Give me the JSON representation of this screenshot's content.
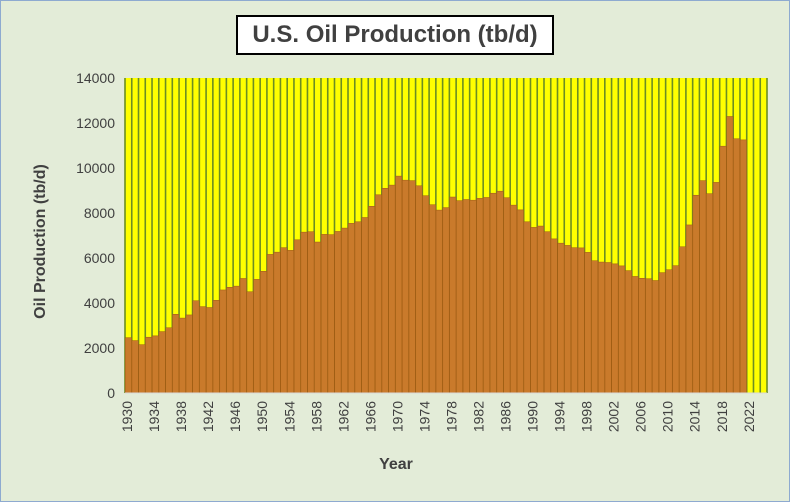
{
  "colors": {
    "background": "#e3ecd8",
    "plot_area": "#ffff00",
    "gridline": "#6b8e23",
    "bar_fill": "#c97a2b",
    "bar_edge": "#9e5a12",
    "text": "#404040"
  },
  "chart_data": {
    "type": "bar",
    "title": "U.S. Oil Production (tb/d)",
    "xlabel": "Year",
    "ylabel": "Oil Production (tb/d)",
    "ylim": [
      0,
      14000
    ],
    "yticks": [
      0,
      2000,
      4000,
      6000,
      8000,
      10000,
      12000,
      14000
    ],
    "xtick_labels": [
      "1930",
      "1934",
      "1938",
      "1942",
      "1946",
      "1950",
      "1954",
      "1958",
      "1962",
      "1966",
      "1970",
      "1974",
      "1978",
      "1982",
      "1986",
      "1990",
      "1994",
      "1998",
      "2002",
      "2006",
      "2010",
      "2014",
      "2018",
      "2022"
    ],
    "grid": "vertical",
    "legend": "none",
    "x": [
      1930,
      1931,
      1932,
      1933,
      1934,
      1935,
      1936,
      1937,
      1938,
      1939,
      1940,
      1941,
      1942,
      1943,
      1944,
      1945,
      1946,
      1947,
      1948,
      1949,
      1950,
      1951,
      1952,
      1953,
      1954,
      1955,
      1956,
      1957,
      1958,
      1959,
      1960,
      1961,
      1962,
      1963,
      1964,
      1965,
      1966,
      1967,
      1968,
      1969,
      1970,
      1971,
      1972,
      1973,
      1974,
      1975,
      1976,
      1977,
      1978,
      1979,
      1980,
      1981,
      1982,
      1983,
      1984,
      1985,
      1986,
      1987,
      1988,
      1989,
      1990,
      1991,
      1992,
      1993,
      1994,
      1995,
      1996,
      1997,
      1998,
      1999,
      2000,
      2001,
      2002,
      2003,
      2004,
      2005,
      2006,
      2007,
      2008,
      2009,
      2010,
      2011,
      2012,
      2013,
      2014,
      2015,
      2016,
      2017,
      2018,
      2019,
      2020,
      2021,
      2022,
      2023,
      2024
    ],
    "values": [
      2460,
      2330,
      2150,
      2480,
      2540,
      2730,
      2900,
      3500,
      3330,
      3470,
      4100,
      3840,
      3800,
      4120,
      4580,
      4700,
      4750,
      5090,
      4500,
      5050,
      5410,
      6160,
      6260,
      6460,
      6340,
      6810,
      7150,
      7170,
      6710,
      7050,
      7040,
      7180,
      7330,
      7540,
      7610,
      7800,
      8300,
      8810,
      9100,
      9240,
      9640,
      9460,
      9440,
      9210,
      8770,
      8370,
      8130,
      8240,
      8710,
      8550,
      8600,
      8570,
      8650,
      8690,
      8880,
      8970,
      8680,
      8350,
      8140,
      7610,
      7360,
      7420,
      7170,
      6850,
      6660,
      6560,
      6460,
      6450,
      6250,
      5880,
      5820,
      5800,
      5740,
      5650,
      5440,
      5180,
      5100,
      5080,
      5000,
      5350,
      5480,
      5660,
      6500,
      7470,
      8790,
      9440,
      8860,
      9360,
      10970,
      12290,
      11300,
      11250,
      0,
      0,
      0
    ]
  }
}
